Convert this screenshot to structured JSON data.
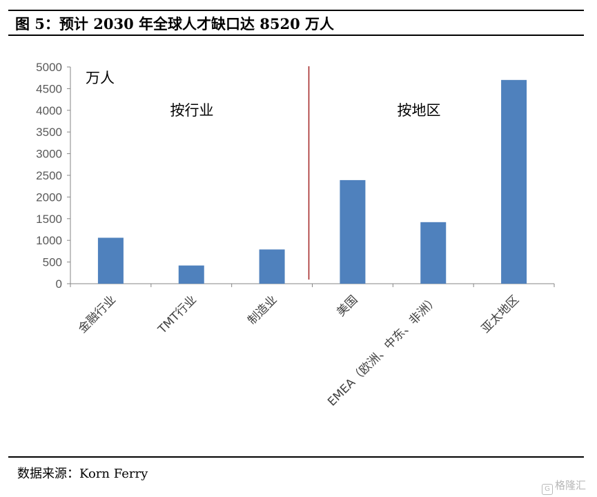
{
  "figure_title": "图 5：预计 2030 年全球人才缺口达 8520 万人",
  "source": "数据来源：Korn Ferry",
  "watermark": "格隆汇",
  "watermark_icon": "G",
  "colors": {
    "bar": "#4f81bd",
    "divider": "#a52a2a",
    "axis": "#868686"
  },
  "chart_data": {
    "type": "bar",
    "unit_label": "万人",
    "ylim": [
      0,
      5000
    ],
    "yticks": [
      0,
      500,
      1000,
      1500,
      2000,
      2500,
      3000,
      3500,
      4000,
      4500,
      5000
    ],
    "categories": [
      "金融行业",
      "TMT行业",
      "制造业",
      "美国",
      "EMEA（欧洲、中东、非洲）",
      "亚太地区"
    ],
    "values": [
      1060,
      420,
      790,
      2390,
      1420,
      4700
    ],
    "group_labels": [
      "按行业",
      "按地区"
    ],
    "grid": false,
    "legend": "none"
  }
}
